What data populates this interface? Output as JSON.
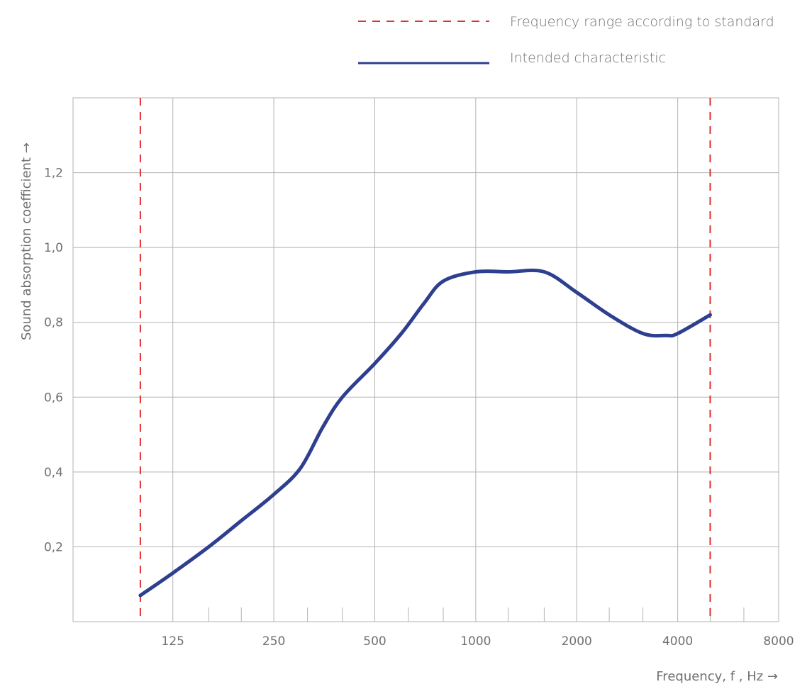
{
  "chart_data": {
    "type": "line",
    "xlabel": "Frequency, f , Hz →",
    "ylabel": "Sound absorption coefficient →",
    "x_scale": "log2",
    "xlim": [
      63,
      8000
    ],
    "ylim": [
      0,
      1.4
    ],
    "x_ticks": [
      125,
      250,
      500,
      1000,
      2000,
      4000,
      8000
    ],
    "x_tick_labels": [
      "125",
      "250",
      "500",
      "1000",
      "2000",
      "4000",
      "8000"
    ],
    "y_ticks": [
      0.2,
      0.4,
      0.6,
      0.8,
      1.0,
      1.2
    ],
    "y_tick_labels": [
      "0,2",
      "0,4",
      "0,6",
      "0,8",
      "1,0",
      "1,2"
    ],
    "grid": true,
    "legend_position": "top-right",
    "series": [
      {
        "name": "Intended characteristic",
        "color": "#2e3f8f",
        "style": "solid",
        "x": [
          100,
          125,
          160,
          200,
          250,
          300,
          350,
          400,
          500,
          600,
          700,
          800,
          1000,
          1250,
          1600,
          2000,
          2500,
          3150,
          3700,
          4000,
          5000
        ],
        "y": [
          0.07,
          0.13,
          0.2,
          0.27,
          0.34,
          0.41,
          0.52,
          0.6,
          0.69,
          0.77,
          0.85,
          0.91,
          0.935,
          0.935,
          0.935,
          0.88,
          0.82,
          0.77,
          0.765,
          0.77,
          0.82
        ]
      },
      {
        "name": "Frequency range according to standard",
        "color": "#e03030",
        "style": "dashed",
        "vertical_lines_x": [
          100,
          5000
        ]
      }
    ],
    "minor_x_ticks": [
      160,
      200,
      315,
      400,
      630,
      800,
      1250,
      1600,
      2500,
      3150,
      5000,
      6300
    ]
  },
  "legend": {
    "items": [
      {
        "label": "Frequency range according to standard",
        "color": "#e03030",
        "style": "dashed"
      },
      {
        "label": "Intended characteristic",
        "color": "#2e3f8f",
        "style": "solid"
      }
    ]
  }
}
